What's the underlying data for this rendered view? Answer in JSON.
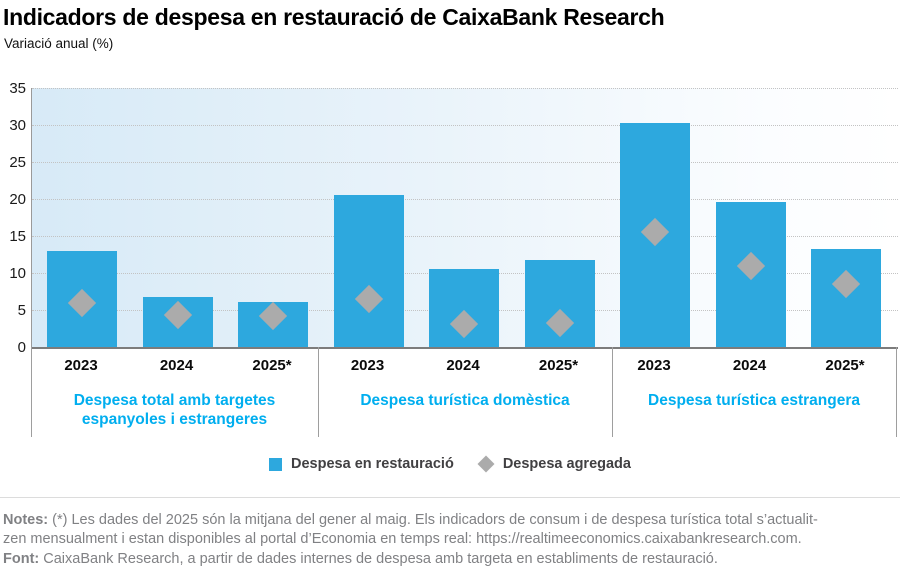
{
  "header": {
    "title": "Indicadors de despesa en restauració de CaixaBank Research",
    "subtitle": "Variació anual (%)"
  },
  "chart_data": {
    "type": "bar",
    "title": "Indicadors de despesa en restauració de CaixaBank Research",
    "ylabel": "Variació anual (%)",
    "ylim": [
      0,
      35
    ],
    "yticks": [
      0,
      5,
      10,
      15,
      20,
      25,
      30,
      35
    ],
    "grid": "horizontal-dotted",
    "legend_position": "bottom-center",
    "categories": [
      "2023",
      "2024",
      "2025*"
    ],
    "groups": [
      {
        "label": "Despesa total amb targetes espanyoles i estrangeres",
        "label_lines": [
          "Despesa total amb targetes",
          "espanyoles i estrangeres"
        ],
        "bars": [
          13.0,
          6.8,
          6.1
        ],
        "diamonds": [
          6.0,
          4.3,
          4.2
        ]
      },
      {
        "label": "Despesa turística domèstica",
        "label_lines": [
          "Despesa turística domèstica"
        ],
        "bars": [
          20.6,
          10.6,
          11.7
        ],
        "diamonds": [
          6.5,
          3.1,
          3.3
        ]
      },
      {
        "label": "Despesa turística estrangera",
        "label_lines": [
          "Despesa turística estrangera"
        ],
        "bars": [
          30.3,
          19.6,
          13.2
        ],
        "diamonds": [
          15.5,
          11.0,
          8.5
        ]
      }
    ],
    "series": [
      {
        "name": "Despesa en restauració",
        "type": "bar",
        "color": "#2DA8DE"
      },
      {
        "name": "Despesa agregada",
        "type": "diamond",
        "color": "#ABABAB"
      }
    ]
  },
  "colors": {
    "bar": "#2DA8DE",
    "diamond": "#ABABAB",
    "group_label": "#00AEEF"
  },
  "notes": {
    "label": "Notes:",
    "line1": " (*) Les dades del 2025 són la mitjana del gener al maig. Els indicadors de consum i de despesa turística total s’actualit-",
    "line2": "zen mensualment i estan disponibles al portal d’Economia en temps real: https://realtimeeconomics.caixabankresearch.com.",
    "font_label": "Font:",
    "font_text": " CaixaBank Research, a partir de dades internes de despesa amb targeta en establiments de restauració."
  }
}
